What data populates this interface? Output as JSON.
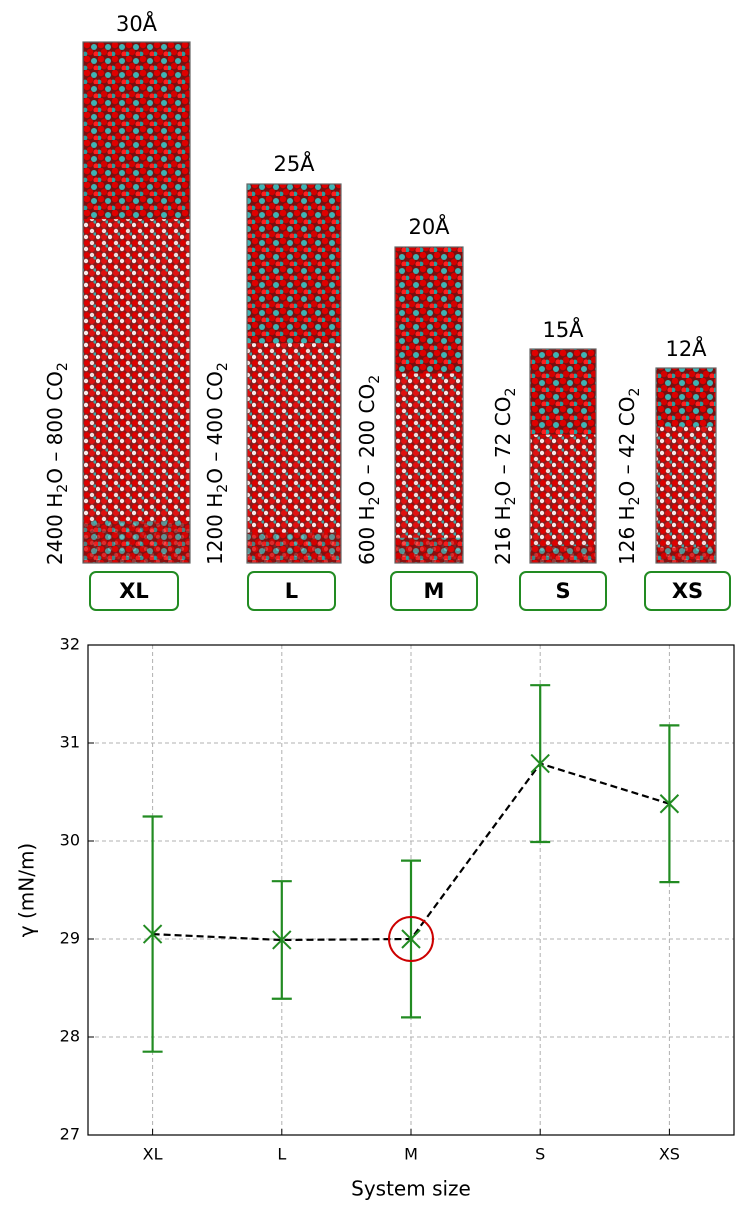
{
  "panels": [
    {
      "width_label": "30Å",
      "composition": [
        "2400 H",
        "2",
        "O – 800 CO",
        "2"
      ],
      "size_label": "XL"
    },
    {
      "width_label": "25Å",
      "composition": [
        "1200 H",
        "2",
        "O – 400 CO",
        "2"
      ],
      "size_label": "L"
    },
    {
      "width_label": "20Å",
      "composition": [
        "600 H",
        "2",
        "O – 200 CO",
        "2"
      ],
      "size_label": "M"
    },
    {
      "width_label": "15Å",
      "composition": [
        "216 H",
        "2",
        "O – 72 CO",
        "2"
      ],
      "size_label": "S"
    },
    {
      "width_label": "12Å",
      "composition": [
        "126 H",
        "2",
        "O – 42 CO",
        "2"
      ],
      "size_label": "XS"
    }
  ],
  "chart_data": {
    "type": "line",
    "xlabel": "System size",
    "ylabel": "γ (mN/m)",
    "categories": [
      "XL",
      "L",
      "M",
      "S",
      "XS"
    ],
    "values": [
      29.05,
      28.99,
      29.0,
      30.79,
      30.38
    ],
    "errors": [
      1.2,
      0.6,
      0.8,
      0.8,
      0.8
    ],
    "color": "#228b22",
    "line_color": "#000000",
    "highlight": "M",
    "highlight_color": "#cc0000",
    "ylim": [
      27,
      32
    ],
    "yticks": [
      27,
      28,
      29,
      30,
      31,
      32
    ],
    "grid": true
  }
}
